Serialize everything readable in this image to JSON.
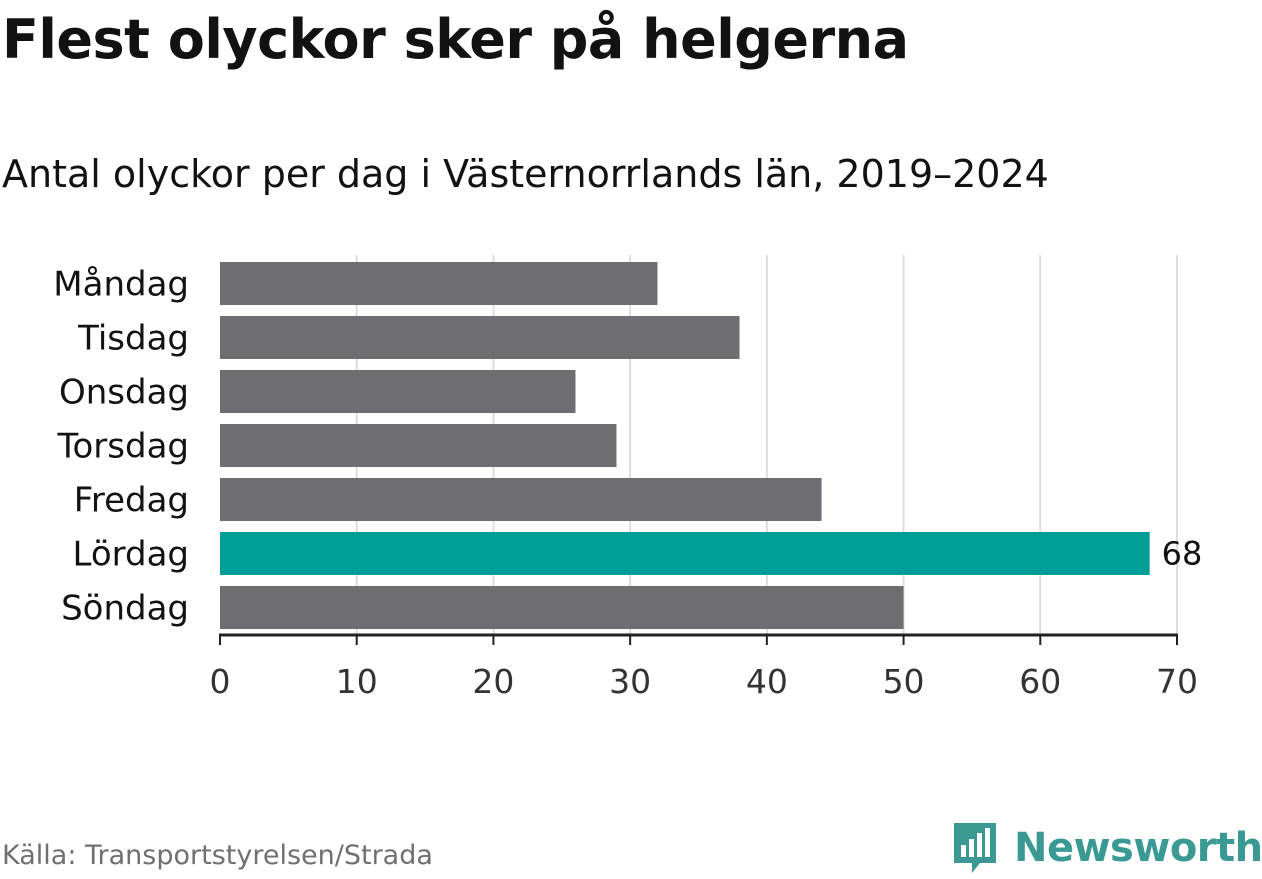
{
  "title": "Flest olyckor sker på helgerna",
  "subtitle": "Antal olyckor per dag i Västernorrlands län, 2019–2024",
  "source": "Källa: Transportstyrelsen/Strada",
  "brand": {
    "name": "Newsworthy",
    "logo_icon": "newsworthy-logo-icon",
    "color": "#3a9a93"
  },
  "colors": {
    "bar_default": "#6e6d72",
    "bar_highlight": "#009e96",
    "grid": "#dddddd",
    "axis": "#222222",
    "text": "#121212"
  },
  "chart_data": {
    "type": "bar",
    "orientation": "horizontal",
    "categories": [
      "Måndag",
      "Tisdag",
      "Onsdag",
      "Torsdag",
      "Fredag",
      "Lördag",
      "Söndag"
    ],
    "values": [
      32,
      38,
      26,
      29,
      44,
      68,
      50
    ],
    "highlight": "Lördag",
    "data_labels": [
      {
        "category": "Lördag",
        "text": "68"
      }
    ],
    "xlim": [
      0,
      70
    ],
    "xticks": [
      "0",
      "10",
      "20",
      "30",
      "40",
      "50",
      "60",
      "70"
    ],
    "xlabel": "",
    "ylabel": "",
    "grid": true,
    "legend": "none"
  }
}
